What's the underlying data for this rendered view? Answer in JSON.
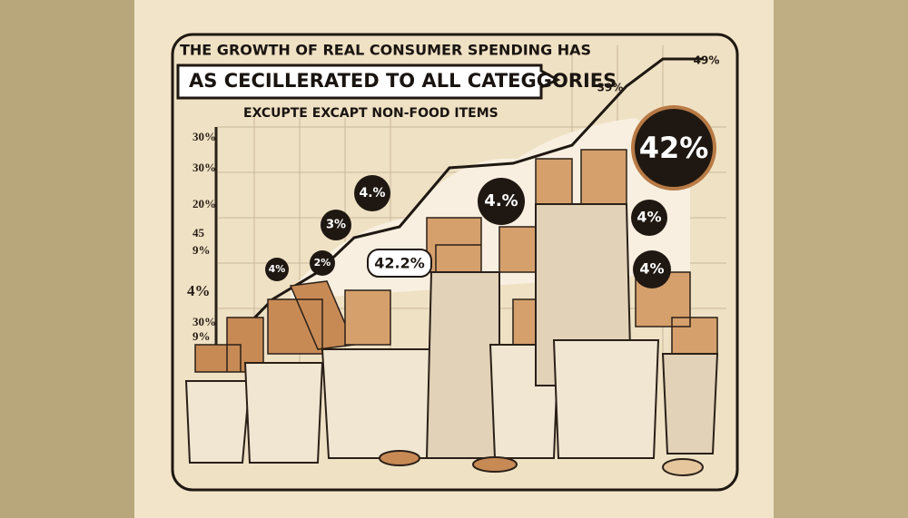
{
  "header": {
    "lines": [
      "THE  GROWTH OF REAL CONSUMER SPENDING HAS",
      "AS CECILLERATED TO ALL CATEGGORIES",
      "EXCUPTE  EXCAPT NON-FOOD ITEMS"
    ]
  },
  "axis_labels": [
    "30%",
    "30%",
    "20%",
    "45",
    "9%",
    "4%",
    "30%",
    "9%"
  ],
  "badges": [
    "4%",
    "3%",
    "2%",
    "4.%",
    "42.2%",
    "4.%",
    "39%",
    "42%",
    "49%",
    "4%",
    "4%"
  ]
}
